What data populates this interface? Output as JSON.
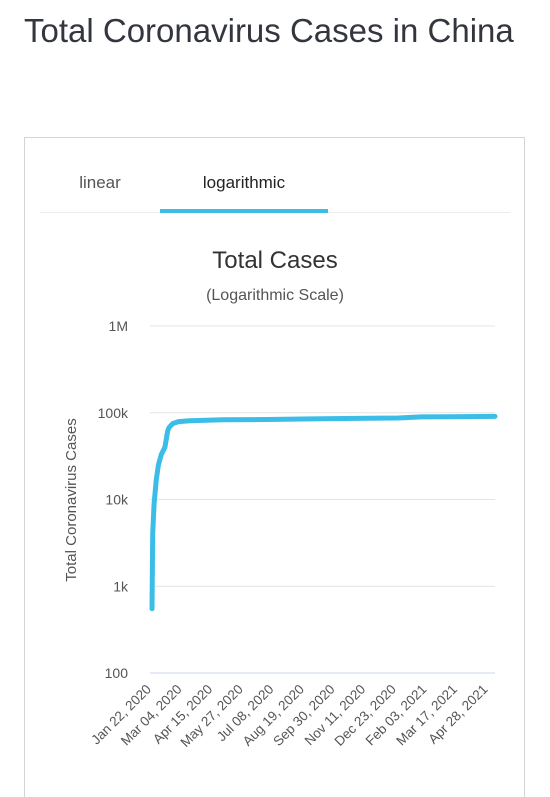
{
  "page": {
    "title": "Total Coronavirus Cases in China"
  },
  "tabs": [
    {
      "label": "linear",
      "active": false
    },
    {
      "label": "logarithmic",
      "active": true
    }
  ],
  "colors": {
    "accent": "#3bbde8",
    "series": "#3bbde8",
    "grid": "#e4e4e4",
    "baseline": "#c8d6f0"
  },
  "chart_data": {
    "type": "line",
    "title": "Total Cases",
    "subtitle": "(Logarithmic Scale)",
    "ylabel": "Total Coronavirus Cases",
    "yscale": "log",
    "ylim": [
      100,
      1000000
    ],
    "yticks": [
      {
        "value": 100,
        "label": "100"
      },
      {
        "value": 1000,
        "label": "1k"
      },
      {
        "value": 10000,
        "label": "10k"
      },
      {
        "value": 100000,
        "label": "100k"
      },
      {
        "value": 1000000,
        "label": "1M"
      }
    ],
    "xlim": [
      "2020-01-22",
      "2021-05-16"
    ],
    "xticks": [
      "Jan 22, 2020",
      "Mar 04, 2020",
      "Apr 15, 2020",
      "May 27, 2020",
      "Jul 08, 2020",
      "Aug 19, 2020",
      "Sep 30, 2020",
      "Nov 11, 2020",
      "Dec 23, 2020",
      "Feb 03, 2021",
      "Mar 17, 2021",
      "Apr 28, 2021"
    ],
    "grid": true,
    "legend": "none",
    "series": [
      {
        "points": [
          [
            "2020-01-22",
            550
          ],
          [
            "2020-01-23",
            4000
          ],
          [
            "2020-01-25",
            9000
          ],
          [
            "2020-01-28",
            17000
          ],
          [
            "2020-01-31",
            25000
          ],
          [
            "2020-02-04",
            33000
          ],
          [
            "2020-02-09",
            40000
          ],
          [
            "2020-02-13",
            62000
          ],
          [
            "2020-02-15",
            68000
          ],
          [
            "2020-02-20",
            75000
          ],
          [
            "2020-02-28",
            79000
          ],
          [
            "2020-03-15",
            81000
          ],
          [
            "2020-05-01",
            82900
          ],
          [
            "2020-07-01",
            83500
          ],
          [
            "2020-09-01",
            85000
          ],
          [
            "2020-11-01",
            86000
          ],
          [
            "2021-01-01",
            87000
          ],
          [
            "2021-02-01",
            89500
          ],
          [
            "2021-03-17",
            90000
          ],
          [
            "2021-05-16",
            90800
          ]
        ]
      }
    ]
  }
}
